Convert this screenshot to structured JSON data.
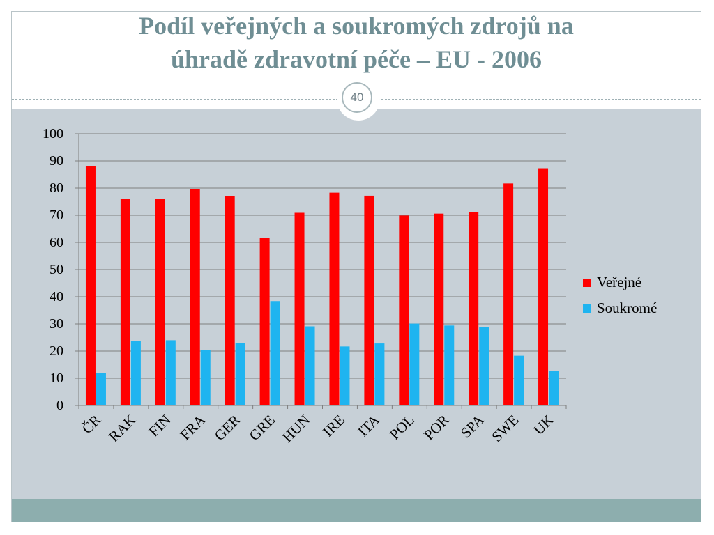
{
  "slide": {
    "title_line1": "Podíl veřejných a soukromých zdrojů na",
    "title_line2": "úhradě zdravotní péče – EU - 2006",
    "page_number": "40"
  },
  "colors": {
    "title": "#6f8e94",
    "content_bg": "#c7d0d7",
    "footer": "#8daeae",
    "public": "#ff0000",
    "private": "#1fb4f0"
  },
  "chart_data": {
    "type": "bar",
    "title": "",
    "xlabel": "",
    "ylabel": "",
    "ylim": [
      0,
      100
    ],
    "yticks": [
      0,
      10,
      20,
      30,
      40,
      50,
      60,
      70,
      80,
      90,
      100
    ],
    "grid": true,
    "legend_position": "right",
    "categories": [
      "ČR",
      "RAK",
      "FIN",
      "FRA",
      "GER",
      "GRE",
      "HUN",
      "IRE",
      "ITA",
      "POL",
      "POR",
      "SPA",
      "SWE",
      "UK"
    ],
    "series": [
      {
        "name": "Veřejné",
        "color": "#ff0000",
        "values": [
          88,
          76,
          76,
          79.7,
          77,
          61.6,
          70.9,
          78.3,
          77.2,
          69.9,
          70.6,
          71.2,
          81.7,
          87.3
        ]
      },
      {
        "name": "Soukromé",
        "color": "#1fb4f0",
        "values": [
          12,
          23.8,
          24,
          20.3,
          23,
          38.4,
          29.1,
          21.7,
          22.8,
          30.1,
          29.4,
          28.8,
          18.3,
          12.7
        ]
      }
    ]
  }
}
